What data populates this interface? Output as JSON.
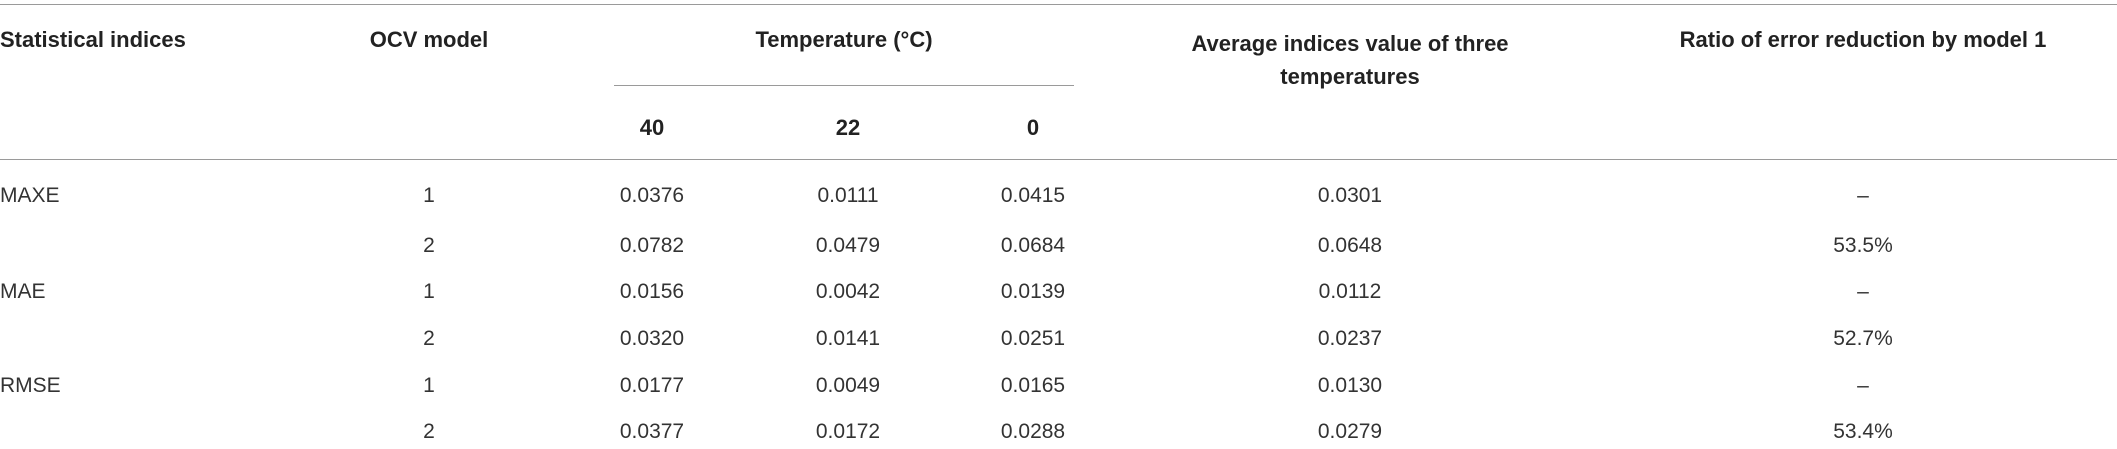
{
  "table": {
    "header": {
      "statistical_indices": "Statistical indices",
      "ocv_model": "OCV model",
      "temperature": "Temperature (°C)",
      "temperatures": [
        "40",
        "22",
        "0"
      ],
      "average": "Average indices value of three temperatures",
      "ratio": "Ratio of error reduction by model 1"
    },
    "groups": [
      {
        "index": "MAXE",
        "rows": [
          [
            "1",
            "0.0376",
            "0.0111",
            "0.0415",
            "0.0301",
            "–"
          ],
          [
            "2",
            "0.0782",
            "0.0479",
            "0.0684",
            "0.0648",
            "53.5%"
          ]
        ]
      },
      {
        "index": "MAE",
        "rows": [
          [
            "1",
            "0.0156",
            "0.0042",
            "0.0139",
            "0.0112",
            "–"
          ],
          [
            "2",
            "0.0320",
            "0.0141",
            "0.0251",
            "0.0237",
            "52.7%"
          ]
        ]
      },
      {
        "index": "RMSE",
        "rows": [
          [
            "1",
            "0.0177",
            "0.0049",
            "0.0165",
            "0.0130",
            "–"
          ],
          [
            "2",
            "0.0377",
            "0.0172",
            "0.0288",
            "0.0279",
            "53.4%"
          ]
        ]
      }
    ]
  }
}
